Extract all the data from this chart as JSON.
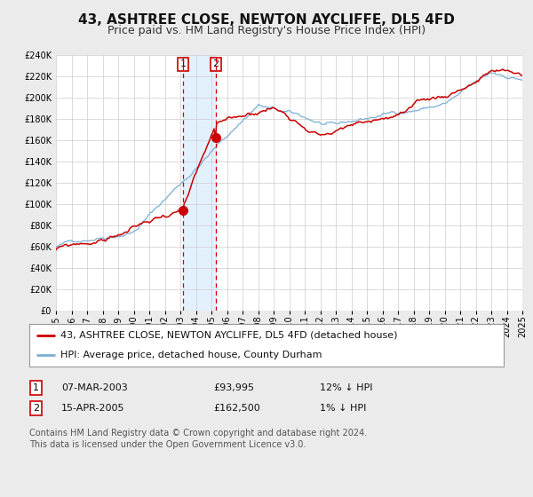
{
  "title": "43, ASHTREE CLOSE, NEWTON AYCLIFFE, DL5 4FD",
  "subtitle": "Price paid vs. HM Land Registry's House Price Index (HPI)",
  "ylim": [
    0,
    240000
  ],
  "yticks": [
    0,
    20000,
    40000,
    60000,
    80000,
    100000,
    120000,
    140000,
    160000,
    180000,
    200000,
    220000,
    240000
  ],
  "sale1_date": 2003.18,
  "sale1_price": 93995,
  "sale2_date": 2005.29,
  "sale2_price": 162500,
  "marker_color": "#cc0000",
  "hpi_color": "#7bafd4",
  "price_color": "#cc0000",
  "shading_color": "#ddeeff",
  "vline_color": "#cc0000",
  "background_color": "#ebebeb",
  "plot_bg_color": "#ffffff",
  "grid_color": "#cccccc",
  "legend_label_price": "43, ASHTREE CLOSE, NEWTON AYCLIFFE, DL5 4FD (detached house)",
  "legend_label_hpi": "HPI: Average price, detached house, County Durham",
  "table_row1": [
    "1",
    "07-MAR-2003",
    "£93,995",
    "12% ↓ HPI"
  ],
  "table_row2": [
    "2",
    "15-APR-2005",
    "£162,500",
    "1% ↓ HPI"
  ],
  "footer_text": "Contains HM Land Registry data © Crown copyright and database right 2024.\nThis data is licensed under the Open Government Licence v3.0.",
  "title_fontsize": 11,
  "subtitle_fontsize": 9,
  "tick_fontsize": 7,
  "legend_fontsize": 8,
  "table_fontsize": 8,
  "footer_fontsize": 7
}
